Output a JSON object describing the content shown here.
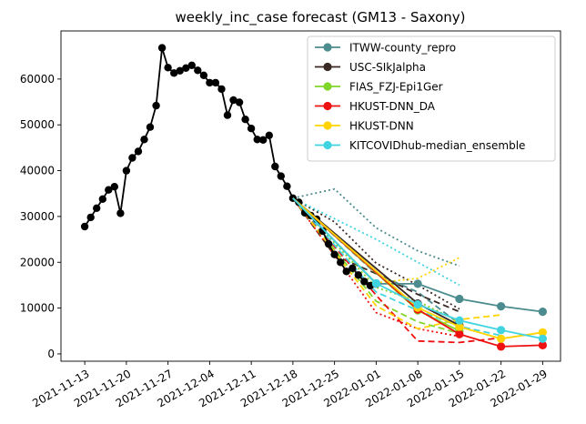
{
  "chart_data": {
    "type": "line",
    "title": "weekly_inc_case forecast (GM13 - Saxony)",
    "xlabel": "",
    "ylabel": "",
    "x_range": [
      "2021-11-09",
      "2022-02-01"
    ],
    "ylim": [
      -1600,
      70500
    ],
    "x_ticks": [
      "2021-11-13",
      "2021-11-20",
      "2021-11-27",
      "2021-12-04",
      "2021-12-11",
      "2021-12-18",
      "2021-12-25",
      "2022-01-01",
      "2022-01-08",
      "2022-01-15",
      "2022-01-22",
      "2022-01-29"
    ],
    "y_ticks": [
      0,
      10000,
      20000,
      30000,
      40000,
      50000,
      60000
    ],
    "y_tick_labels": [
      "0",
      "10000",
      "20000",
      "30000",
      "40000",
      "50000",
      "60000"
    ],
    "grid": false,
    "legend_position": "top-right",
    "truth": {
      "color": "#000000",
      "points": [
        [
          "2021-11-13",
          27800
        ],
        [
          "2021-11-14",
          29800
        ],
        [
          "2021-11-15",
          31800
        ],
        [
          "2021-11-16",
          33800
        ],
        [
          "2021-11-17",
          35800
        ],
        [
          "2021-11-18",
          36500
        ],
        [
          "2021-11-19",
          30700
        ],
        [
          "2021-11-20",
          40000
        ],
        [
          "2021-11-21",
          42800
        ],
        [
          "2021-11-22",
          44200
        ],
        [
          "2021-11-23",
          46800
        ],
        [
          "2021-11-24",
          49500
        ],
        [
          "2021-11-25",
          54200
        ],
        [
          "2021-11-26",
          66800
        ],
        [
          "2021-11-27",
          62500
        ],
        [
          "2021-11-28",
          61300
        ],
        [
          "2021-11-29",
          61800
        ],
        [
          "2021-11-30",
          62400
        ],
        [
          "2021-12-01",
          63000
        ],
        [
          "2021-12-02",
          61900
        ],
        [
          "2021-12-03",
          60800
        ],
        [
          "2021-12-04",
          59200
        ],
        [
          "2021-12-05",
          59200
        ],
        [
          "2021-12-06",
          57800
        ],
        [
          "2021-12-07",
          52100
        ],
        [
          "2021-12-08",
          55400
        ],
        [
          "2021-12-09",
          54900
        ],
        [
          "2021-12-10",
          51200
        ],
        [
          "2021-12-11",
          49200
        ],
        [
          "2021-12-12",
          46800
        ],
        [
          "2021-12-13",
          46700
        ],
        [
          "2021-12-14",
          47700
        ],
        [
          "2021-12-15",
          40900
        ],
        [
          "2021-12-16",
          38800
        ],
        [
          "2021-12-17",
          36600
        ],
        [
          "2021-12-18",
          34000
        ],
        [
          "2021-12-19",
          33100
        ],
        [
          "2021-12-20",
          30800
        ],
        [
          "2021-12-21",
          30200
        ],
        [
          "2021-12-22",
          29400
        ],
        [
          "2021-12-23",
          26800
        ],
        [
          "2021-12-24",
          24000
        ],
        [
          "2021-12-25",
          21700
        ],
        [
          "2021-12-26",
          20000
        ],
        [
          "2021-12-27",
          18000
        ],
        [
          "2021-12-28",
          18700
        ],
        [
          "2021-12-29",
          17200
        ],
        [
          "2021-12-30",
          15800
        ],
        [
          "2021-12-31",
          14900
        ]
      ]
    },
    "series": [
      {
        "name": "ITWW-county_repro",
        "color": "#4c8c8f",
        "median": [
          [
            "2021-12-18",
            34000
          ],
          [
            "2022-01-01",
            15300
          ],
          [
            "2022-01-08",
            15300
          ],
          [
            "2022-01-15",
            12000
          ],
          [
            "2022-01-22",
            10400
          ],
          [
            "2022-01-29",
            9200
          ]
        ],
        "q_lower": [
          [
            "2021-12-18",
            34000
          ],
          [
            "2022-01-01",
            17500
          ],
          [
            "2022-01-08",
            13500
          ],
          [
            "2022-01-15",
            6500
          ]
        ],
        "q_upper": [
          [
            "2021-12-18",
            34000
          ],
          [
            "2021-12-25",
            36000
          ],
          [
            "2022-01-01",
            27500
          ],
          [
            "2022-01-08",
            22500
          ],
          [
            "2022-01-15",
            19200
          ]
        ]
      },
      {
        "name": "USC-SIkJalpha",
        "color": "#3a2a25",
        "median": [
          [
            "2021-12-18",
            34000
          ],
          [
            "2022-01-08",
            11000
          ],
          [
            "2022-01-15",
            6200
          ]
        ],
        "q_lower": [
          [
            "2021-12-18",
            34000
          ],
          [
            "2021-12-25",
            21500
          ],
          [
            "2022-01-01",
            17500
          ],
          [
            "2022-01-08",
            13000
          ],
          [
            "2022-01-15",
            9200
          ]
        ],
        "q_upper": [
          [
            "2021-12-18",
            34000
          ],
          [
            "2021-12-25",
            28800
          ],
          [
            "2022-01-01",
            19800
          ],
          [
            "2022-01-08",
            15000
          ],
          [
            "2022-01-15",
            9800
          ]
        ]
      },
      {
        "name": "FIAS_FZJ-Epi1Ger",
        "color": "#7fd62a",
        "median": [
          [
            "2021-12-18",
            34000
          ],
          [
            "2022-01-08",
            9500
          ],
          [
            "2022-01-15",
            5000
          ]
        ],
        "q_lower": [
          [
            "2021-12-18",
            34000
          ],
          [
            "2022-01-01",
            11500
          ],
          [
            "2022-01-08",
            7000
          ],
          [
            "2022-01-15",
            4500
          ]
        ],
        "q_upper": [
          [
            "2021-12-18",
            34000
          ],
          [
            "2022-01-01",
            14500
          ],
          [
            "2022-01-08",
            11500
          ],
          [
            "2022-01-15",
            7000
          ]
        ]
      },
      {
        "name": "HKUST-DNN_DA",
        "color": "#ee1111",
        "median": [
          [
            "2021-12-18",
            34000
          ],
          [
            "2022-01-08",
            9700
          ],
          [
            "2022-01-15",
            4300
          ],
          [
            "2022-01-22",
            1600
          ],
          [
            "2022-01-29",
            1900
          ]
        ],
        "q_lower": [
          [
            "2021-12-18",
            34000
          ],
          [
            "2022-01-01",
            12800
          ],
          [
            "2022-01-08",
            2800
          ],
          [
            "2022-01-15",
            2500
          ],
          [
            "2022-01-22",
            3500
          ]
        ],
        "q_upper": [
          [
            "2021-12-18",
            34000
          ],
          [
            "2022-01-01",
            9000
          ],
          [
            "2022-01-08",
            5500
          ],
          [
            "2022-01-15",
            3800
          ]
        ]
      },
      {
        "name": "HKUST-DNN",
        "color": "#ffd400",
        "median": [
          [
            "2021-12-18",
            34000
          ],
          [
            "2022-01-08",
            10100
          ],
          [
            "2022-01-15",
            5900
          ],
          [
            "2022-01-22",
            3300
          ],
          [
            "2022-01-29",
            4700
          ]
        ],
        "q_lower": [
          [
            "2021-12-18",
            34000
          ],
          [
            "2022-01-01",
            10500
          ],
          [
            "2022-01-08",
            5500
          ],
          [
            "2022-01-15",
            7500
          ],
          [
            "2022-01-22",
            8500
          ]
        ],
        "q_upper": [
          [
            "2021-12-18",
            34000
          ],
          [
            "2022-01-01",
            15500
          ],
          [
            "2022-01-08",
            16500
          ],
          [
            "2022-01-15",
            21000
          ]
        ]
      },
      {
        "name": "KITCOVIDhub-median_ensemble",
        "color": "#40d4e0",
        "median": [
          [
            "2021-12-18",
            34000
          ],
          [
            "2022-01-01",
            15400
          ],
          [
            "2022-01-08",
            10800
          ],
          [
            "2022-01-15",
            7300
          ],
          [
            "2022-01-22",
            5200
          ],
          [
            "2022-01-29",
            3300
          ]
        ],
        "q_lower": [
          [
            "2021-12-18",
            34000
          ],
          [
            "2022-01-01",
            13500
          ],
          [
            "2022-01-08",
            9500
          ],
          [
            "2022-01-15",
            6000
          ],
          [
            "2022-01-22",
            4000
          ]
        ],
        "q_upper": [
          [
            "2021-12-18",
            34000
          ],
          [
            "2022-01-01",
            25000
          ],
          [
            "2022-01-08",
            20000
          ],
          [
            "2022-01-15",
            15000
          ]
        ]
      }
    ]
  }
}
